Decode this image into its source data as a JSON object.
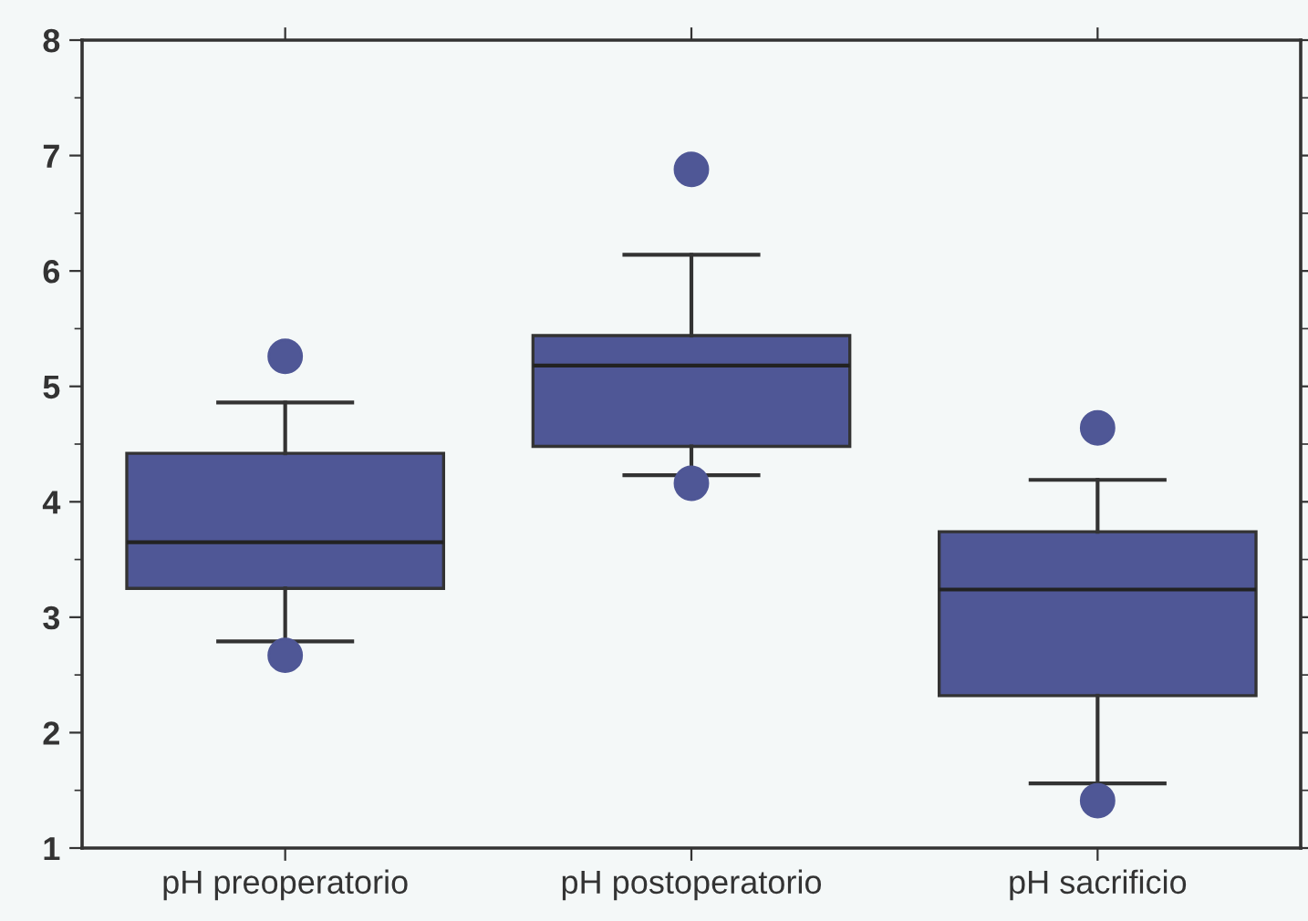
{
  "chart_data": {
    "type": "box",
    "categories": [
      "pH preoperatorio",
      "pH postoperatorio",
      "pH sacrificio"
    ],
    "color": "#4f5796",
    "boxes": [
      {
        "low": 2.79,
        "q1": 3.25,
        "median": 3.65,
        "q3": 4.42,
        "high": 4.86,
        "outliers": [
          5.26,
          2.67
        ]
      },
      {
        "low": 4.23,
        "q1": 4.48,
        "median": 5.18,
        "q3": 5.44,
        "high": 6.14,
        "outliers": [
          6.88,
          4.16
        ]
      },
      {
        "low": 1.56,
        "q1": 2.32,
        "median": 3.24,
        "q3": 3.74,
        "high": 4.19,
        "outliers": [
          4.64,
          1.41
        ]
      }
    ],
    "ylim": [
      1,
      8
    ],
    "yticks": [
      1,
      2,
      3,
      4,
      5,
      6,
      7,
      8
    ],
    "grid": false
  }
}
